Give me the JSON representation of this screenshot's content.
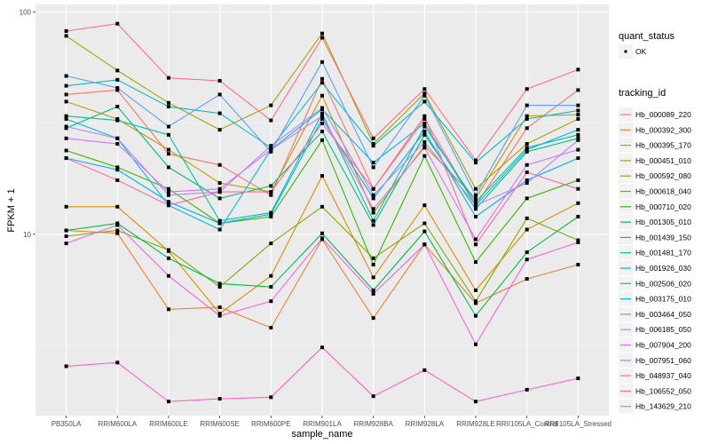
{
  "chart_data": {
    "type": "line",
    "title": "",
    "xlabel": "sample_name",
    "ylabel": "FPKM + 1",
    "y_scale": "log10",
    "ylim": [
      1.53,
      108
    ],
    "y_ticks": [
      10,
      100
    ],
    "y_tick_labels": [
      "10",
      "100"
    ],
    "grid": true,
    "categories": [
      "PB350LA",
      "RRIM600LA",
      "RRIM600LE",
      "RRIM600SE",
      "RRIM600PE",
      "RRIM901LA",
      "RRIM928BA",
      "RRIM928LA",
      "RRIM928LE",
      "RRII105LA_Control",
      "RRII105LA_Stressed"
    ],
    "legend_shape": {
      "title": "quant_status",
      "entries": [
        "OK"
      ],
      "placement": "right"
    },
    "legend_color": {
      "title": "tracking_id",
      "placement": "right"
    },
    "series": [
      {
        "name": "Hb_000089_220",
        "color": "#F8766D",
        "values": [
          42.5,
          44.5,
          23.0,
          20.5,
          15.0,
          50.0,
          16.0,
          33.0,
          13.5,
          30.0,
          44.5
        ]
      },
      {
        "name": "Hb_000392_300",
        "color": "#EA8331",
        "values": [
          10.4,
          10.1,
          4.6,
          4.7,
          3.8,
          9.5,
          4.2,
          9.0,
          4.9,
          6.3,
          7.3
        ]
      },
      {
        "name": "Hb_000395_170",
        "color": "#D89000",
        "values": [
          13.3,
          13.3,
          8.4,
          4.4,
          6.5,
          18.3,
          6.4,
          13.5,
          5.6,
          10.5,
          13.8
        ]
      },
      {
        "name": "Hb_000451_010",
        "color": "#C09B00",
        "values": [
          39.5,
          33.0,
          24.0,
          17.0,
          15.5,
          42.0,
          12.5,
          25.0,
          14.5,
          34.0,
          34.5
        ]
      },
      {
        "name": "Hb_000592_080",
        "color": "#A3A500",
        "values": [
          78.0,
          54.5,
          39.0,
          29.5,
          38.0,
          80.0,
          25.5,
          43.0,
          16.0,
          25.5,
          33.0
        ]
      },
      {
        "name": "Hb_000618_040",
        "color": "#7CAE00",
        "values": [
          9.8,
          10.4,
          8.5,
          5.8,
          9.1,
          13.3,
          7.8,
          11.2,
          5.0,
          11.8,
          9.4
        ]
      },
      {
        "name": "Hb_000710_020",
        "color": "#39B600",
        "values": [
          23.8,
          20.0,
          16.0,
          11.2,
          12.0,
          26.5,
          7.3,
          22.5,
          7.5,
          14.5,
          17.5
        ]
      },
      {
        "name": "Hb_001305_010",
        "color": "#00BB4E",
        "values": [
          10.4,
          11.2,
          7.8,
          6.0,
          5.8,
          10.1,
          5.6,
          10.3,
          4.3,
          8.3,
          12.0
        ]
      },
      {
        "name": "Hb_001439_150",
        "color": "#00BF7D",
        "values": [
          30.0,
          37.5,
          20.0,
          14.5,
          16.5,
          29.0,
          11.0,
          28.0,
          13.0,
          23.5,
          27.0
        ]
      },
      {
        "name": "Hb_001481_170",
        "color": "#00C1A3",
        "values": [
          34.0,
          32.5,
          28.0,
          11.5,
          12.5,
          35.0,
          11.5,
          30.5,
          14.0,
          24.5,
          28.0
        ]
      },
      {
        "name": "Hb_001926_030",
        "color": "#00BFC4",
        "values": [
          46.5,
          49.5,
          37.5,
          35.0,
          24.5,
          48.0,
          25.0,
          39.5,
          21.0,
          33.0,
          36.0
        ]
      },
      {
        "name": "Hb_002506_020",
        "color": "#00B9E3",
        "values": [
          33.0,
          27.0,
          13.5,
          10.5,
          24.0,
          36.5,
          21.0,
          31.5,
          13.5,
          24.0,
          29.5
        ]
      },
      {
        "name": "Hb_003175_010",
        "color": "#00ADFA",
        "values": [
          22.0,
          19.5,
          14.0,
          11.2,
          12.3,
          33.0,
          14.5,
          29.0,
          12.0,
          17.5,
          22.0
        ]
      },
      {
        "name": "Hb_003464_050",
        "color": "#619CFF",
        "values": [
          51.5,
          45.5,
          30.5,
          42.5,
          23.5,
          59.5,
          20.0,
          42.0,
          15.0,
          38.0,
          38.0
        ]
      },
      {
        "name": "Hb_006185_050",
        "color": "#AE87FF",
        "values": [
          30.5,
          27.0,
          15.0,
          15.5,
          25.0,
          37.0,
          15.0,
          26.0,
          13.5,
          17.0,
          26.5
        ]
      },
      {
        "name": "Hb_007904_200",
        "color": "#DB72FB",
        "values": [
          27.0,
          25.5,
          15.5,
          16.0,
          24.0,
          34.0,
          13.0,
          24.5,
          9.5,
          20.5,
          24.0
        ]
      },
      {
        "name": "Hb_007951_060",
        "color": "#F564E3",
        "values": [
          9.1,
          11.0,
          6.5,
          4.3,
          5.0,
          9.6,
          5.4,
          9.0,
          3.2,
          7.7,
          9.2
        ]
      },
      {
        "name": "Hb_048937_040",
        "color": "#FF61C3",
        "values": [
          2.55,
          2.65,
          1.77,
          1.82,
          1.85,
          3.1,
          1.87,
          2.45,
          1.77,
          2.0,
          2.25
        ]
      },
      {
        "name": "Hb_106552_050",
        "color": "#FF6C91",
        "values": [
          82.0,
          88.5,
          50.5,
          49.0,
          32.5,
          76.5,
          27.0,
          45.0,
          21.5,
          45.0,
          55.0
        ]
      },
      {
        "name": "Hb_143629_210",
        "color": "#FF699C",
        "values": [
          22.0,
          17.5,
          13.5,
          15.5,
          15.5,
          31.5,
          16.0,
          34.0,
          9.0,
          19.0,
          16.0
        ]
      }
    ]
  }
}
